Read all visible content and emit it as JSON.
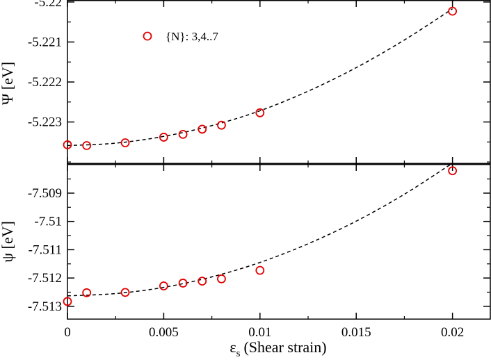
{
  "chart_data": [
    {
      "type": "scatter",
      "panel": "top",
      "ylabel": "Ψ [eV]",
      "xlim": [
        0,
        0.022
      ],
      "ylim": [
        -5.22405,
        -5.21995
      ],
      "yticks": [
        -5.22,
        -5.221,
        -5.222,
        -5.223
      ],
      "ytick_labels": [
        "-5.22",
        "-5.221",
        "-5.222",
        "-5.223"
      ],
      "legend": {
        "label": "{N}: 3,4..7",
        "location": "top-left"
      },
      "series": [
        {
          "name": "{N}: 3,4..7",
          "x": [
            0,
            0.001,
            0.003,
            0.005,
            0.006,
            0.007,
            0.008,
            0.01,
            0.02
          ],
          "y": [
            -5.22357,
            -5.22359,
            -5.22352,
            -5.22338,
            -5.22331,
            -5.22318,
            -5.22308,
            -5.22277,
            -5.22023
          ],
          "marker": "open-circle",
          "color": "#e00000"
        }
      ],
      "fit": {
        "style": "dashed",
        "color": "#000000",
        "x": [
          0,
          0.0025,
          0.005,
          0.0075,
          0.01,
          0.0125,
          0.015,
          0.0175,
          0.02
        ],
        "y": [
          -5.22359,
          -5.22353,
          -5.22336,
          -5.22309,
          -5.22272,
          -5.22223,
          -5.22164,
          -5.22095,
          -5.22017
        ]
      }
    },
    {
      "type": "scatter",
      "panel": "bottom",
      "ylabel": "ψ [eV]",
      "xlabel_symbol": "ε",
      "xlabel_subscript": "s",
      "xlabel_text": "(Shear strain)",
      "xlim": [
        0,
        0.022
      ],
      "ylim": [
        -7.51347,
        -7.50797
      ],
      "yticks": [
        -7.509,
        -7.51,
        -7.511,
        -7.512,
        -7.513
      ],
      "ytick_labels": [
        "-7.509",
        "-7.51",
        "-7.511",
        "-7.512",
        "-7.513"
      ],
      "xticks": [
        0,
        0.005,
        0.01,
        0.015,
        0.02
      ],
      "xtick_labels": [
        "0",
        "0.005",
        "0.01",
        "0.015",
        "0.02"
      ],
      "series": [
        {
          "name": "{N}: 3,4..7",
          "x": [
            0,
            0.001,
            0.003,
            0.005,
            0.006,
            0.007,
            0.008,
            0.01,
            0.02
          ],
          "y": [
            -7.51283,
            -7.51252,
            -7.51251,
            -7.51228,
            -7.51218,
            -7.51211,
            -7.51203,
            -7.51173,
            -7.50821
          ],
          "marker": "open-circle",
          "color": "#e00000"
        }
      ],
      "fit": {
        "style": "dashed",
        "color": "#000000",
        "x": [
          0,
          0.0025,
          0.005,
          0.0075,
          0.01,
          0.0125,
          0.015,
          0.0175,
          0.02
        ],
        "y": [
          -7.51263,
          -7.51255,
          -7.51233,
          -7.51196,
          -7.51145,
          -7.51079,
          -7.50999,
          -7.50904,
          -7.50794
        ]
      }
    }
  ]
}
